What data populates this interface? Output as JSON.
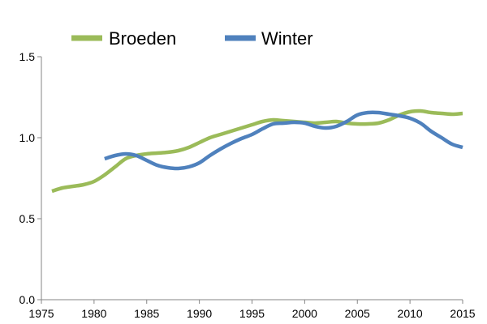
{
  "chart_data": {
    "type": "line",
    "title": "",
    "xlabel": "",
    "ylabel": "",
    "xlim": [
      1975,
      2015
    ],
    "ylim": [
      0,
      1.5
    ],
    "x_ticks": [
      1975,
      1980,
      1985,
      1990,
      1995,
      2000,
      2005,
      2010,
      2015
    ],
    "x_tick_labels": [
      "1975",
      "1980",
      "1985",
      "1990",
      "1995",
      "2000",
      "2005",
      "2010",
      "2015"
    ],
    "y_ticks": [
      0,
      0.5,
      1.0,
      1.5
    ],
    "y_tick_labels": [
      "0.0",
      "0.5",
      "1.0",
      "1.5"
    ],
    "grid": false,
    "legend_position": "top",
    "series": [
      {
        "name": "Broeden",
        "color": "#9bbb59",
        "x": [
          1976,
          1977,
          1978,
          1979,
          1980,
          1981,
          1982,
          1983,
          1984,
          1985,
          1986,
          1987,
          1988,
          1989,
          1990,
          1991,
          1992,
          1993,
          1994,
          1995,
          1996,
          1997,
          1998,
          1999,
          2000,
          2001,
          2002,
          2003,
          2004,
          2005,
          2006,
          2007,
          2008,
          2009,
          2010,
          2011,
          2012,
          2013,
          2014,
          2015
        ],
        "values": [
          0.67,
          0.69,
          0.7,
          0.71,
          0.73,
          0.77,
          0.82,
          0.87,
          0.89,
          0.9,
          0.905,
          0.91,
          0.92,
          0.94,
          0.97,
          1.0,
          1.02,
          1.04,
          1.06,
          1.08,
          1.1,
          1.11,
          1.105,
          1.1,
          1.095,
          1.09,
          1.095,
          1.1,
          1.09,
          1.085,
          1.085,
          1.09,
          1.11,
          1.14,
          1.16,
          1.165,
          1.155,
          1.15,
          1.145,
          1.15
        ]
      },
      {
        "name": "Winter",
        "color": "#4f81bd",
        "x": [
          1981,
          1982,
          1983,
          1984,
          1985,
          1986,
          1987,
          1988,
          1989,
          1990,
          1991,
          1992,
          1993,
          1994,
          1995,
          1996,
          1997,
          1998,
          1999,
          2000,
          2001,
          2002,
          2003,
          2004,
          2005,
          2006,
          2007,
          2008,
          2009,
          2010,
          2011,
          2012,
          2013,
          2014,
          2015
        ],
        "values": [
          0.87,
          0.89,
          0.9,
          0.89,
          0.86,
          0.83,
          0.815,
          0.81,
          0.82,
          0.845,
          0.89,
          0.93,
          0.965,
          0.995,
          1.02,
          1.055,
          1.085,
          1.09,
          1.095,
          1.09,
          1.07,
          1.06,
          1.07,
          1.1,
          1.14,
          1.155,
          1.155,
          1.145,
          1.135,
          1.12,
          1.09,
          1.04,
          1.0,
          0.96,
          0.94
        ]
      }
    ]
  }
}
